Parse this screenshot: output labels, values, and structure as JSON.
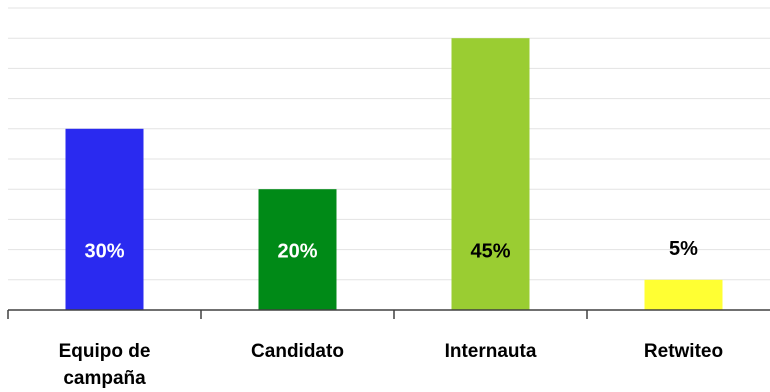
{
  "chart_data": {
    "type": "bar",
    "categories": [
      [
        "Equipo de",
        "campaña"
      ],
      [
        "Candidato"
      ],
      [
        "Internauta"
      ],
      [
        "Retwiteo"
      ]
    ],
    "values": [
      30,
      20,
      45,
      5
    ],
    "value_labels": [
      "30%",
      "20%",
      "45%",
      "5%"
    ],
    "colors": [
      "#2a2af0",
      "#008a17",
      "#9acd32",
      "#ffff33"
    ],
    "label_colors": [
      "#ffffff",
      "#ffffff",
      "#000000",
      "#000000"
    ],
    "label_position": "inside-bottom-bar; above-bar-if-short",
    "ylim": [
      0,
      50
    ],
    "grid": true,
    "title": "",
    "xlabel": "",
    "ylabel": ""
  }
}
